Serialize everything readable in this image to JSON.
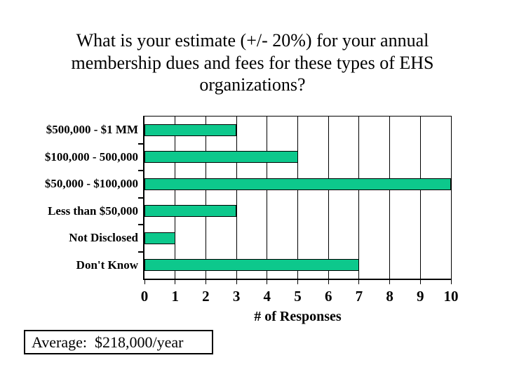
{
  "title": {
    "lines": [
      "What is your estimate (+/- 20%) for your annual",
      "membership dues and fees for these types of EHS",
      "organizations?"
    ]
  },
  "average": {
    "label": "Average:  $218,000/year"
  },
  "chart_data": {
    "type": "bar",
    "orientation": "horizontal",
    "title": "",
    "categories": [
      "$500,000 - $1 MM",
      "$100,000 - 500,000",
      "$50,000 - $100,000",
      "Less than $50,000",
      "Not Disclosed",
      "Don't Know"
    ],
    "values": [
      3,
      5,
      10,
      3,
      1,
      7
    ],
    "xlabel": "# of Responses",
    "xlim": [
      0,
      10
    ],
    "x_ticks": [
      0,
      1,
      2,
      3,
      4,
      5,
      6,
      7,
      8,
      9,
      10
    ],
    "grid": true,
    "legend": false,
    "bar_color": "#0DC88C",
    "bar_border_color": "#000000",
    "axis_color": "#000000",
    "background_color": "#FFFFFF"
  }
}
